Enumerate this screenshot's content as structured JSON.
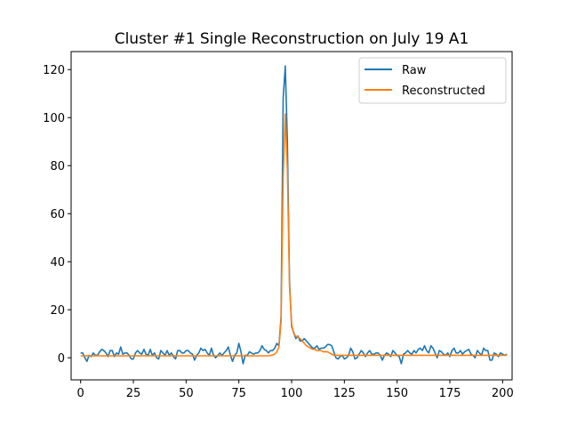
{
  "chart_data": {
    "type": "line",
    "title": "Cluster #1 Single Reconstruction on July 19 A1",
    "xlabel": "",
    "ylabel": "",
    "xlim": [
      -4.5,
      204.5
    ],
    "ylim": [
      -9.2,
      127.5
    ],
    "x_ticks": [
      0,
      25,
      50,
      75,
      100,
      125,
      150,
      175,
      200
    ],
    "y_ticks": [
      0,
      20,
      40,
      60,
      80,
      100,
      120
    ],
    "grid": false,
    "legend": {
      "placement": "top-right"
    },
    "series": [
      {
        "name": "Raw",
        "color": "#1f77b4",
        "x_start": 0,
        "x_step": 1,
        "values": [
          2.0,
          2.0,
          0.0,
          -1.5,
          1.0,
          0.5,
          2.0,
          1.0,
          1.0,
          2.5,
          3.5,
          3.0,
          2.0,
          0.5,
          3.0,
          3.0,
          0.5,
          2.0,
          1.5,
          4.5,
          1.5,
          2.0,
          2.0,
          1.0,
          -0.5,
          -0.5,
          2.0,
          3.0,
          2.0,
          1.5,
          3.5,
          1.5,
          1.0,
          3.5,
          1.0,
          2.0,
          0.0,
          -0.5,
          3.0,
          2.0,
          1.0,
          3.0,
          1.0,
          2.0,
          0.5,
          -0.5,
          3.0,
          3.0,
          2.0,
          2.0,
          3.0,
          3.0,
          2.0,
          1.5,
          -1.0,
          1.0,
          2.0,
          4.0,
          3.0,
          3.5,
          2.0,
          1.0,
          4.0,
          1.0,
          0.0,
          1.0,
          2.0,
          1.0,
          2.0,
          3.0,
          4.5,
          1.0,
          -1.5,
          1.0,
          2.0,
          6.0,
          2.5,
          -2.5,
          1.0,
          1.0,
          2.5,
          2.0,
          1.5,
          2.0,
          2.0,
          3.0,
          5.0,
          3.5,
          3.0,
          2.0,
          3.0,
          3.0,
          4.0,
          6.0,
          5.0,
          17.0,
          108.0,
          121.5,
          90.0,
          32.0,
          13.0,
          10.5,
          8.0,
          9.0,
          7.0,
          7.0,
          8.0,
          7.0,
          6.0,
          5.0,
          4.0,
          4.0,
          5.0,
          3.5,
          4.0,
          4.0,
          4.5,
          5.5,
          5.5,
          5.0,
          2.5,
          0.0,
          -0.5,
          0.5,
          1.0,
          -0.5,
          0.0,
          1.0,
          4.0,
          2.5,
          -0.5,
          0.0,
          1.5,
          3.0,
          2.0,
          0.5,
          2.0,
          3.0,
          1.5,
          1.5,
          2.0,
          2.0,
          1.0,
          -1.0,
          1.0,
          2.0,
          1.5,
          0.5,
          3.0,
          2.0,
          1.0,
          0.5,
          -2.5,
          1.5,
          2.0,
          3.0,
          2.0,
          1.5,
          3.0,
          2.0,
          3.5,
          4.0,
          3.0,
          5.0,
          3.0,
          2.0,
          5.0,
          4.0,
          2.0,
          0.0,
          3.0,
          2.5,
          1.5,
          1.0,
          2.0,
          0.5,
          3.0,
          4.0,
          2.0,
          2.0,
          3.0,
          1.5,
          2.5,
          3.0,
          3.5,
          1.5,
          1.0,
          0.0,
          3.0,
          2.0,
          1.0,
          4.0,
          3.0,
          3.0,
          -1.0,
          -1.0,
          2.0,
          1.5,
          0.5,
          2.0,
          1.5,
          1.0,
          1.5
        ]
      },
      {
        "name": "Reconstructed",
        "color": "#ff7f0e",
        "x_start": 0,
        "x_step": 1,
        "values": [
          0.8,
          0.8,
          0.8,
          0.8,
          0.8,
          0.8,
          0.8,
          0.8,
          0.8,
          0.8,
          0.8,
          0.8,
          0.8,
          0.8,
          0.8,
          0.8,
          0.8,
          0.8,
          0.8,
          0.8,
          0.8,
          0.8,
          0.8,
          0.8,
          0.8,
          0.8,
          0.8,
          0.8,
          0.8,
          0.8,
          0.8,
          0.8,
          0.8,
          0.8,
          0.8,
          0.8,
          0.8,
          0.8,
          0.8,
          0.8,
          0.8,
          0.8,
          0.8,
          0.8,
          0.8,
          0.8,
          0.8,
          0.8,
          0.8,
          0.8,
          0.8,
          0.8,
          0.8,
          0.8,
          0.8,
          0.8,
          0.8,
          0.8,
          0.8,
          0.8,
          0.8,
          0.8,
          0.8,
          0.8,
          0.8,
          0.8,
          0.8,
          0.8,
          0.8,
          0.8,
          0.8,
          0.8,
          0.8,
          0.8,
          0.8,
          0.8,
          0.8,
          0.8,
          0.8,
          0.8,
          0.8,
          0.8,
          0.8,
          0.8,
          0.8,
          0.8,
          0.8,
          0.8,
          0.8,
          0.8,
          1.0,
          1.2,
          1.5,
          2.5,
          4.5,
          15.0,
          75.0,
          101.5,
          78.0,
          30.0,
          14.0,
          10.0,
          9.0,
          8.5,
          8.0,
          7.0,
          6.0,
          5.0,
          4.5,
          4.0,
          3.5,
          3.5,
          3.0,
          3.0,
          3.0,
          2.5,
          2.5,
          2.5,
          2.0,
          1.5,
          1.0,
          1.0,
          1.0,
          1.0,
          1.0,
          1.0,
          1.0,
          1.0,
          1.0,
          1.0,
          1.0,
          1.0,
          1.0,
          1.0,
          1.0,
          1.0,
          1.0,
          1.0,
          1.0,
          1.0,
          1.0,
          1.0,
          1.0,
          1.0,
          1.0,
          1.0,
          1.0,
          1.0,
          1.0,
          1.0,
          1.0,
          1.0,
          1.0,
          1.0,
          1.0,
          1.0,
          1.0,
          1.0,
          1.0,
          1.0,
          1.0,
          1.0,
          1.0,
          1.0,
          1.0,
          1.0,
          1.0,
          1.0,
          1.0,
          1.0,
          1.0,
          1.0,
          1.0,
          1.0,
          1.0,
          1.0,
          1.0,
          1.0,
          1.0,
          1.0,
          1.0,
          1.0,
          1.0,
          1.0,
          1.0,
          1.0,
          1.0,
          1.0,
          1.0,
          1.0,
          1.0,
          1.0,
          1.0,
          1.0,
          1.0,
          1.0,
          1.0,
          1.0,
          1.0,
          1.0,
          1.0,
          1.0,
          1.0
        ]
      }
    ]
  }
}
